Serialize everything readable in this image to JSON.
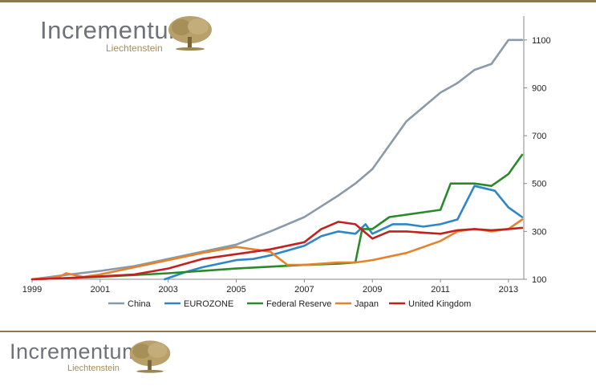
{
  "logo": {
    "word": "Incrementum",
    "sub": "Liechtenstein"
  },
  "colors": {
    "accent": "#8c7a4e"
  },
  "chart_data": {
    "type": "line",
    "title": "",
    "xlabel": "",
    "ylabel": "",
    "xlim": [
      1999,
      2013.45
    ],
    "ylim": [
      100,
      1200
    ],
    "x_ticks": [
      1999,
      2001,
      2003,
      2005,
      2007,
      2009,
      2011,
      2013
    ],
    "x_tick_labels": [
      "1999",
      "2001",
      "2003",
      "2005",
      "2007",
      "2009",
      "2011",
      "2013"
    ],
    "y_ticks": [
      100,
      300,
      500,
      700,
      900,
      1100
    ],
    "y_tick_labels": [
      "100",
      "300",
      "500",
      "700",
      "900",
      "1100"
    ],
    "y_axis_side": "right",
    "grid": false,
    "legend_position": "bottom",
    "series": [
      {
        "name": "China",
        "color": "#8a9aa8",
        "x": [
          1999,
          2000,
          2001,
          2002,
          2003,
          2004,
          2005,
          2006,
          2007,
          2008,
          2008.5,
          2009,
          2009.5,
          2010,
          2010.5,
          2011,
          2011.5,
          2012,
          2012.5,
          2013,
          2013.4
        ],
        "y": [
          100,
          118,
          135,
          155,
          185,
          215,
          245,
          300,
          360,
          450,
          500,
          560,
          660,
          760,
          820,
          880,
          920,
          975,
          1000,
          1100,
          1100
        ]
      },
      {
        "name": "EUROZONE",
        "color": "#2e86c8",
        "x": [
          2002.9,
          2003.5,
          2004,
          2004.5,
          2005,
          2005.5,
          2006,
          2006.5,
          2007,
          2007.5,
          2008,
          2008.5,
          2008.8,
          2009,
          2009.3,
          2009.6,
          2010,
          2010.5,
          2011,
          2011.5,
          2012,
          2012.3,
          2012.6,
          2013,
          2013.4
        ],
        "y": [
          100,
          130,
          150,
          165,
          180,
          185,
          200,
          220,
          240,
          280,
          300,
          290,
          330,
          290,
          310,
          330,
          330,
          320,
          330,
          350,
          490,
          480,
          470,
          400,
          360
        ]
      },
      {
        "name": "Federal Reserve",
        "color": "#2a8a2a",
        "x": [
          1999,
          2001,
          2003,
          2005,
          2007,
          2008,
          2008.5,
          2008.7,
          2009,
          2009.5,
          2010,
          2010.5,
          2011,
          2011.3,
          2012,
          2012.5,
          2013,
          2013.4
        ],
        "y": [
          100,
          110,
          125,
          145,
          160,
          165,
          170,
          310,
          310,
          360,
          370,
          380,
          390,
          500,
          500,
          490,
          540,
          620
        ]
      },
      {
        "name": "Japan",
        "color": "#e8822a",
        "x": [
          1999,
          1999.8,
          2000,
          2000.5,
          2001,
          2002,
          2003,
          2004,
          2005,
          2006,
          2006.5,
          2007,
          2008,
          2008.5,
          2009,
          2010,
          2011,
          2011.5,
          2012,
          2012.5,
          2013,
          2013.4
        ],
        "y": [
          100,
          110,
          125,
          110,
          120,
          150,
          180,
          210,
          235,
          215,
          160,
          160,
          170,
          170,
          180,
          210,
          260,
          300,
          310,
          300,
          310,
          350
        ]
      },
      {
        "name": "United Kingdom",
        "color": "#c42020",
        "x": [
          1999,
          2000,
          2001,
          2002,
          2003,
          2004,
          2005,
          2006,
          2007,
          2007.5,
          2008,
          2008.5,
          2009,
          2009.5,
          2010,
          2010.5,
          2011,
          2011.5,
          2012,
          2012.5,
          2013,
          2013.4
        ],
        "y": [
          100,
          105,
          112,
          120,
          145,
          185,
          205,
          225,
          255,
          310,
          340,
          330,
          270,
          300,
          300,
          295,
          290,
          305,
          310,
          305,
          310,
          315
        ]
      }
    ]
  }
}
